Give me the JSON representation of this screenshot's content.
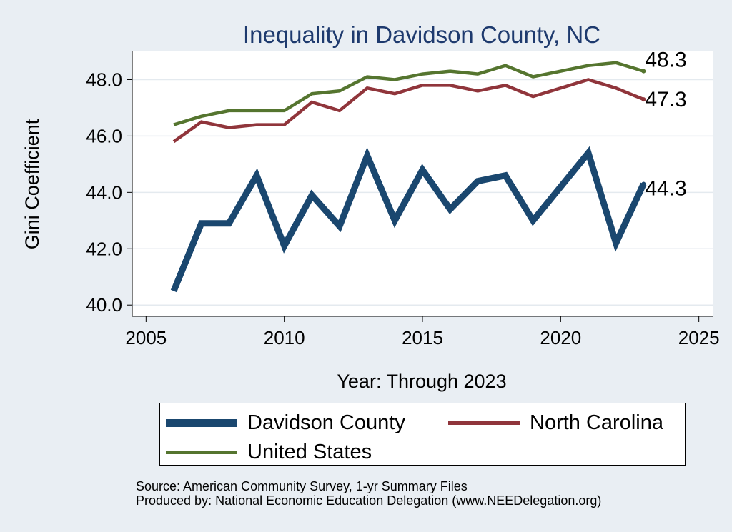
{
  "chart_data": {
    "type": "line",
    "title": "Inequality in Davidson County, NC",
    "xlabel": "Year: Through 2023",
    "ylabel": "Gini Coefficient",
    "xlim": [
      2004.5,
      2025.5
    ],
    "ylim": [
      39.6,
      49.0
    ],
    "xticks": [
      2005,
      2010,
      2015,
      2020,
      2025
    ],
    "yticks": [
      40.0,
      42.0,
      44.0,
      46.0,
      48.0
    ],
    "ytick_labels": [
      "40.0",
      "42.0",
      "44.0",
      "46.0",
      "48.0"
    ],
    "grid": true,
    "x": [
      2006,
      2007,
      2008,
      2009,
      2010,
      2011,
      2012,
      2013,
      2014,
      2015,
      2016,
      2017,
      2018,
      2019,
      2021,
      2022,
      2023
    ],
    "series": [
      {
        "name": "Davidson County",
        "color": "#1a476f",
        "values": [
          40.5,
          42.9,
          42.9,
          44.6,
          42.1,
          43.9,
          42.8,
          45.3,
          43.0,
          44.8,
          43.4,
          44.4,
          44.6,
          43.0,
          45.4,
          42.2,
          44.3
        ],
        "end_label": "44.3"
      },
      {
        "name": "North Carolina",
        "color": "#90353b",
        "values": [
          45.8,
          46.5,
          46.3,
          46.4,
          46.4,
          47.2,
          46.9,
          47.7,
          47.5,
          47.8,
          47.8,
          47.6,
          47.8,
          47.4,
          48.0,
          47.7,
          47.3
        ],
        "end_label": "47.3"
      },
      {
        "name": "United States",
        "color": "#55752f",
        "values": [
          46.4,
          46.7,
          46.9,
          46.9,
          46.9,
          47.5,
          47.6,
          48.1,
          48.0,
          48.2,
          48.3,
          48.2,
          48.5,
          48.1,
          48.5,
          48.6,
          48.3
        ],
        "end_label": "48.3"
      }
    ],
    "legend": [
      "Davidson County",
      "North Carolina",
      "United States"
    ],
    "legend_position": "bottom"
  },
  "source_line": "Source: American Community Survey, 1-yr Summary Files",
  "produced_line": "Produced by: National Economic Education Delegation (www.NEEDelegation.org)"
}
